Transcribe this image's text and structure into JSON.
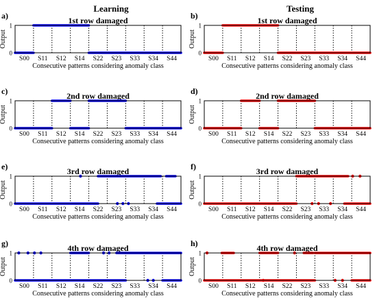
{
  "column_titles": [
    "Learning",
    "Testing"
  ],
  "palette": {
    "learning": "#0000ff",
    "testing": "#ff0000"
  },
  "chart_data": [
    {
      "panel": "a)",
      "type": "scatter",
      "title": "1st row damaged",
      "column": "learning",
      "xlabel": "Consecutive patterns considering anomaly class",
      "ylabel": "Output",
      "categories": [
        "S00",
        "S11",
        "S12",
        "S14",
        "S22",
        "S23",
        "S33",
        "S34",
        "S44"
      ],
      "yticks": [
        0,
        1
      ],
      "ylim": [
        0,
        1
      ],
      "grid": "vertical dotted class separators",
      "output_1": [
        [
          1.0,
          4.0
        ]
      ],
      "output_0": [
        [
          0.0,
          1.0
        ],
        [
          4.0,
          9.0
        ]
      ]
    },
    {
      "panel": "b)",
      "type": "scatter",
      "title": "1st row damaged",
      "column": "testing",
      "xlabel": "Consecutive patterns considering anomaly class",
      "ylabel": "Output",
      "categories": [
        "S00",
        "S11",
        "S12",
        "S14",
        "S22",
        "S23",
        "S33",
        "S34",
        "S44"
      ],
      "yticks": [
        0,
        1
      ],
      "ylim": [
        0,
        1
      ],
      "grid": "vertical dotted class separators",
      "output_1": [
        [
          1.0,
          4.0
        ]
      ],
      "output_0": [
        [
          0.0,
          1.0
        ],
        [
          4.0,
          9.0
        ]
      ]
    },
    {
      "panel": "c)",
      "type": "scatter",
      "title": "2nd row damaged",
      "column": "learning",
      "xlabel": "Consecutive patterns considering anomaly class",
      "ylabel": "Output",
      "categories": [
        "S00",
        "S11",
        "S12",
        "S14",
        "S22",
        "S23",
        "S33",
        "S34",
        "S44"
      ],
      "yticks": [
        0,
        1
      ],
      "ylim": [
        0,
        1
      ],
      "grid": "vertical dotted class separators",
      "output_1": [
        [
          2.0,
          3.0
        ],
        [
          4.0,
          6.0
        ]
      ],
      "output_0": [
        [
          0.0,
          2.0
        ],
        [
          3.0,
          4.0
        ],
        [
          6.0,
          9.0
        ]
      ]
    },
    {
      "panel": "d)",
      "type": "scatter",
      "title": "2nd row damaged",
      "column": "testing",
      "xlabel": "Consecutive patterns considering anomaly class",
      "ylabel": "Output",
      "categories": [
        "S00",
        "S11",
        "S12",
        "S14",
        "S22",
        "S23",
        "S33",
        "S34",
        "S44"
      ],
      "yticks": [
        0,
        1
      ],
      "ylim": [
        0,
        1
      ],
      "grid": "vertical dotted class separators",
      "output_1": [
        [
          2.0,
          3.0
        ],
        [
          4.0,
          6.0
        ]
      ],
      "output_0": [
        [
          0.0,
          2.0
        ],
        [
          3.0,
          4.0
        ],
        [
          6.0,
          9.0
        ]
      ]
    },
    {
      "panel": "e)",
      "type": "scatter",
      "title": "3rd row damaged",
      "column": "learning",
      "xlabel": "Consecutive patterns considering anomaly class",
      "ylabel": "Output",
      "categories": [
        "S00",
        "S11",
        "S12",
        "S14",
        "S22",
        "S23",
        "S33",
        "S34",
        "S44"
      ],
      "yticks": [
        0,
        1
      ],
      "ylim": [
        0,
        1
      ],
      "grid": "vertical dotted class separators",
      "output_1": [
        [
          4.5,
          7.9
        ],
        [
          8.2,
          8.7
        ]
      ],
      "output_0": [
        [
          0.0,
          4.5
        ],
        [
          7.7,
          9.0
        ]
      ],
      "output_1_points": [
        3.55
      ],
      "output_0_points": [
        5.55,
        5.85,
        6.15
      ]
    },
    {
      "panel": "f)",
      "type": "scatter",
      "title": "3rd row damaged",
      "column": "testing",
      "xlabel": "Consecutive patterns considering anomaly class",
      "ylabel": "Output",
      "categories": [
        "S00",
        "S11",
        "S12",
        "S14",
        "S22",
        "S23",
        "S33",
        "S34",
        "S44"
      ],
      "yticks": [
        0,
        1
      ],
      "ylim": [
        0,
        1
      ],
      "grid": "vertical dotted class separators",
      "output_1": [
        [
          5.0,
          7.8
        ]
      ],
      "output_0": [
        [
          0.0,
          5.0
        ],
        [
          7.6,
          9.0
        ]
      ],
      "output_1_points": [
        8.05,
        8.45
      ],
      "output_0_points": [
        5.85,
        6.2,
        6.85
      ]
    },
    {
      "panel": "g)",
      "type": "scatter",
      "title": "4th row damaged",
      "column": "learning",
      "xlabel": "Consecutive patterns considering anomaly class",
      "ylabel": "Output",
      "categories": [
        "S00",
        "S11",
        "S12",
        "S14",
        "S22",
        "S23",
        "S33",
        "S34",
        "S44"
      ],
      "yticks": [
        0,
        1
      ],
      "ylim": [
        0,
        1
      ],
      "grid": "vertical dotted class separators",
      "output_1": [
        [
          3.0,
          4.0
        ],
        [
          5.5,
          6.0
        ],
        [
          6.0,
          9.0
        ]
      ],
      "output_0": [
        [
          0.0,
          6.0
        ],
        [
          8.0,
          9.0
        ]
      ],
      "output_1_points": [
        0.2,
        0.7,
        1.05,
        1.4,
        4.8,
        5.1
      ],
      "output_0_points": [
        7.2,
        7.5
      ]
    },
    {
      "panel": "h)",
      "type": "scatter",
      "title": "4th row damaged",
      "column": "testing",
      "xlabel": "Consecutive patterns considering anomaly class",
      "ylabel": "Output",
      "categories": [
        "S00",
        "S11",
        "S12",
        "S14",
        "S22",
        "S23",
        "S33",
        "S34",
        "S44"
      ],
      "yticks": [
        0,
        1
      ],
      "ylim": [
        0,
        1
      ],
      "grid": "vertical dotted class separators",
      "output_1": [
        [
          0.95,
          1.6
        ],
        [
          3.0,
          4.0
        ],
        [
          5.4,
          5.9
        ],
        [
          6.0,
          9.0
        ]
      ],
      "output_0": [
        [
          0.0,
          6.0
        ],
        [
          8.0,
          9.0
        ]
      ],
      "output_1_points": [
        0.15,
        4.9
      ],
      "output_0_points": [
        3.2,
        7.1,
        7.5
      ]
    }
  ]
}
